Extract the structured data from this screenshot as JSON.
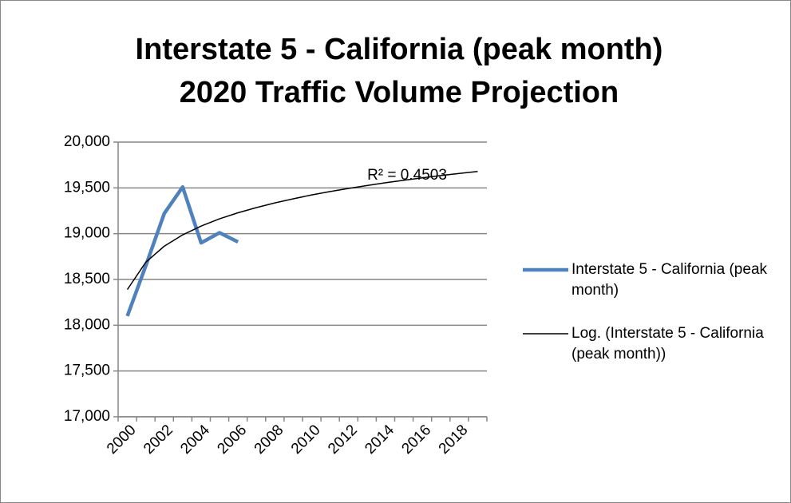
{
  "chart_data": {
    "type": "line",
    "title": "Interstate 5 - California (peak month)",
    "subtitle": "2020 Traffic Volume Projection",
    "annotation": "R² = 0.4503",
    "categories": [
      "2000",
      null,
      "2002",
      null,
      "2004",
      null,
      "2006",
      null,
      "2008",
      null,
      "2010",
      null,
      "2012",
      null,
      "2014",
      null,
      "2016",
      null,
      "2018",
      null
    ],
    "series": [
      {
        "name": "Interstate 5 - California (peak month)",
        "color": "#4f81bd",
        "values": [
          18100,
          18650,
          19220,
          19510,
          18900,
          19010,
          18910,
          null,
          null,
          null,
          null,
          null,
          null,
          null,
          null,
          null,
          null,
          null,
          null,
          null
        ]
      },
      {
        "name": "Log. (Interstate 5 - California (peak month))",
        "color": "#000000",
        "values": [
          18390,
          18688,
          18863,
          18987,
          19083,
          19162,
          19228,
          19285,
          19336,
          19381,
          19423,
          19460,
          19494,
          19526,
          19556,
          19584,
          19610,
          19635,
          19658,
          19680
        ]
      }
    ],
    "ylim": [
      17000,
      20000
    ],
    "yticks": [
      {
        "value": 17000,
        "label": "17,000"
      },
      {
        "value": 17500,
        "label": "17,500"
      },
      {
        "value": 18000,
        "label": "18,000"
      },
      {
        "value": 18500,
        "label": "18,500"
      },
      {
        "value": 19000,
        "label": "19,000"
      },
      {
        "value": 19500,
        "label": "19,500"
      },
      {
        "value": 20000,
        "label": "20,000"
      }
    ],
    "grid": true,
    "legend": "right"
  }
}
